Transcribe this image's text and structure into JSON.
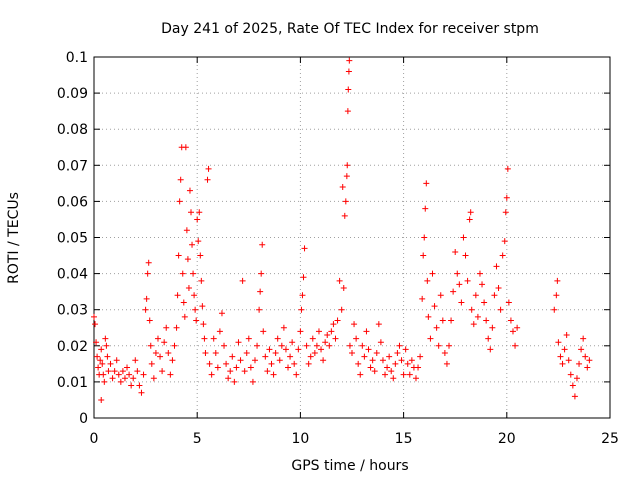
{
  "chart_data": {
    "type": "scatter",
    "title": "Day 241 of 2025, Rate Of TEC Index for receiver stpm",
    "xlabel": "GPS time / hours",
    "ylabel": "ROTI / TECUs",
    "xlim": [
      0,
      25
    ],
    "ylim": [
      0,
      0.1
    ],
    "x_ticks": [
      0,
      5,
      10,
      15,
      20,
      25
    ],
    "y_ticks": [
      0,
      0.01,
      0.02,
      0.03,
      0.04,
      0.05,
      0.06,
      0.07,
      0.08,
      0.09,
      0.1
    ],
    "x_tick_labels": [
      "0",
      "5",
      "10",
      "15",
      "20",
      "25"
    ],
    "y_tick_labels": [
      "0",
      "0.01",
      "0.02",
      "0.03",
      "0.04",
      "0.05",
      "0.06",
      "0.07",
      "0.08",
      "0.09",
      "0.1"
    ],
    "grid": true,
    "marker": "+",
    "color": "#ff0000",
    "series": [
      {
        "points": [
          [
            0.0,
            0.028
          ],
          [
            0.05,
            0.026
          ],
          [
            0.1,
            0.021
          ],
          [
            0.15,
            0.017
          ],
          [
            0.2,
            0.014
          ],
          [
            0.25,
            0.012
          ],
          [
            0.3,
            0.016
          ],
          [
            0.35,
            0.019
          ],
          [
            0.4,
            0.015
          ],
          [
            0.45,
            0.012
          ],
          [
            0.5,
            0.01
          ],
          [
            0.35,
            0.005
          ],
          [
            0.55,
            0.022
          ],
          [
            0.6,
            0.02
          ],
          [
            0.65,
            0.017
          ],
          [
            0.7,
            0.013
          ],
          [
            0.8,
            0.015
          ],
          [
            0.9,
            0.011
          ],
          [
            1.0,
            0.013
          ],
          [
            1.1,
            0.016
          ],
          [
            1.2,
            0.012
          ],
          [
            1.3,
            0.01
          ],
          [
            1.4,
            0.013
          ],
          [
            1.5,
            0.011
          ],
          [
            1.6,
            0.014
          ],
          [
            1.7,
            0.012
          ],
          [
            1.8,
            0.009
          ],
          [
            1.9,
            0.011
          ],
          [
            2.0,
            0.016
          ],
          [
            2.1,
            0.013
          ],
          [
            2.2,
            0.009
          ],
          [
            2.3,
            0.007
          ],
          [
            2.4,
            0.012
          ],
          [
            2.5,
            0.03
          ],
          [
            2.55,
            0.033
          ],
          [
            2.6,
            0.04
          ],
          [
            2.65,
            0.043
          ],
          [
            2.7,
            0.027
          ],
          [
            2.75,
            0.02
          ],
          [
            2.8,
            0.015
          ],
          [
            2.9,
            0.011
          ],
          [
            3.0,
            0.018
          ],
          [
            3.1,
            0.022
          ],
          [
            3.2,
            0.017
          ],
          [
            3.3,
            0.013
          ],
          [
            3.4,
            0.021
          ],
          [
            3.5,
            0.025
          ],
          [
            3.6,
            0.018
          ],
          [
            3.7,
            0.012
          ],
          [
            3.8,
            0.016
          ],
          [
            3.9,
            0.02
          ],
          [
            4.0,
            0.025
          ],
          [
            4.05,
            0.034
          ],
          [
            4.1,
            0.045
          ],
          [
            4.15,
            0.06
          ],
          [
            4.2,
            0.066
          ],
          [
            4.25,
            0.075
          ],
          [
            4.3,
            0.04
          ],
          [
            4.35,
            0.032
          ],
          [
            4.4,
            0.028
          ],
          [
            4.45,
            0.075
          ],
          [
            4.5,
            0.052
          ],
          [
            4.55,
            0.044
          ],
          [
            4.6,
            0.036
          ],
          [
            4.65,
            0.063
          ],
          [
            4.7,
            0.057
          ],
          [
            4.75,
            0.048
          ],
          [
            4.8,
            0.04
          ],
          [
            4.85,
            0.034
          ],
          [
            4.9,
            0.03
          ],
          [
            4.95,
            0.027
          ],
          [
            5.0,
            0.055
          ],
          [
            5.05,
            0.049
          ],
          [
            5.1,
            0.057
          ],
          [
            5.15,
            0.045
          ],
          [
            5.2,
            0.038
          ],
          [
            5.25,
            0.031
          ],
          [
            5.3,
            0.026
          ],
          [
            5.35,
            0.022
          ],
          [
            5.4,
            0.018
          ],
          [
            5.5,
            0.066
          ],
          [
            5.55,
            0.069
          ],
          [
            5.6,
            0.015
          ],
          [
            5.7,
            0.012
          ],
          [
            5.8,
            0.022
          ],
          [
            5.9,
            0.018
          ],
          [
            6.0,
            0.014
          ],
          [
            6.1,
            0.024
          ],
          [
            6.2,
            0.029
          ],
          [
            6.3,
            0.02
          ],
          [
            6.4,
            0.015
          ],
          [
            6.5,
            0.011
          ],
          [
            6.6,
            0.013
          ],
          [
            6.7,
            0.017
          ],
          [
            6.8,
            0.01
          ],
          [
            6.9,
            0.014
          ],
          [
            7.0,
            0.021
          ],
          [
            7.1,
            0.016
          ],
          [
            7.2,
            0.038
          ],
          [
            7.3,
            0.013
          ],
          [
            7.4,
            0.018
          ],
          [
            7.5,
            0.022
          ],
          [
            7.6,
            0.014
          ],
          [
            7.7,
            0.01
          ],
          [
            7.8,
            0.016
          ],
          [
            7.9,
            0.02
          ],
          [
            8.0,
            0.03
          ],
          [
            8.05,
            0.035
          ],
          [
            8.1,
            0.04
          ],
          [
            8.15,
            0.048
          ],
          [
            8.2,
            0.024
          ],
          [
            8.3,
            0.017
          ],
          [
            8.4,
            0.013
          ],
          [
            8.5,
            0.019
          ],
          [
            8.6,
            0.015
          ],
          [
            8.7,
            0.012
          ],
          [
            8.8,
            0.018
          ],
          [
            8.9,
            0.022
          ],
          [
            9.0,
            0.016
          ],
          [
            9.1,
            0.02
          ],
          [
            9.2,
            0.025
          ],
          [
            9.3,
            0.019
          ],
          [
            9.4,
            0.014
          ],
          [
            9.5,
            0.017
          ],
          [
            9.6,
            0.021
          ],
          [
            9.7,
            0.015
          ],
          [
            9.8,
            0.012
          ],
          [
            9.9,
            0.019
          ],
          [
            10.0,
            0.024
          ],
          [
            10.05,
            0.03
          ],
          [
            10.1,
            0.034
          ],
          [
            10.15,
            0.039
          ],
          [
            10.2,
            0.047
          ],
          [
            10.3,
            0.02
          ],
          [
            10.4,
            0.015
          ],
          [
            10.5,
            0.017
          ],
          [
            10.6,
            0.022
          ],
          [
            10.7,
            0.018
          ],
          [
            10.8,
            0.02
          ],
          [
            10.9,
            0.024
          ],
          [
            11.0,
            0.019
          ],
          [
            11.1,
            0.016
          ],
          [
            11.2,
            0.021
          ],
          [
            11.3,
            0.023
          ],
          [
            11.4,
            0.02
          ],
          [
            11.5,
            0.024
          ],
          [
            11.6,
            0.026
          ],
          [
            11.7,
            0.022
          ],
          [
            11.8,
            0.027
          ],
          [
            11.9,
            0.038
          ],
          [
            12.0,
            0.03
          ],
          [
            12.05,
            0.064
          ],
          [
            12.1,
            0.036
          ],
          [
            12.15,
            0.056
          ],
          [
            12.2,
            0.06
          ],
          [
            12.25,
            0.067
          ],
          [
            12.27,
            0.07
          ],
          [
            12.3,
            0.085
          ],
          [
            12.32,
            0.091
          ],
          [
            12.35,
            0.096
          ],
          [
            12.37,
            0.099
          ],
          [
            12.4,
            0.02
          ],
          [
            12.5,
            0.018
          ],
          [
            12.6,
            0.026
          ],
          [
            12.7,
            0.022
          ],
          [
            12.8,
            0.015
          ],
          [
            12.9,
            0.012
          ],
          [
            13.0,
            0.02
          ],
          [
            13.1,
            0.017
          ],
          [
            13.2,
            0.024
          ],
          [
            13.3,
            0.019
          ],
          [
            13.4,
            0.014
          ],
          [
            13.5,
            0.016
          ],
          [
            13.6,
            0.013
          ],
          [
            13.7,
            0.018
          ],
          [
            13.8,
            0.026
          ],
          [
            13.9,
            0.021
          ],
          [
            14.0,
            0.016
          ],
          [
            14.1,
            0.012
          ],
          [
            14.2,
            0.014
          ],
          [
            14.3,
            0.017
          ],
          [
            14.4,
            0.013
          ],
          [
            14.5,
            0.011
          ],
          [
            14.6,
            0.015
          ],
          [
            14.7,
            0.018
          ],
          [
            14.8,
            0.02
          ],
          [
            14.9,
            0.016
          ],
          [
            15.0,
            0.012
          ],
          [
            15.1,
            0.019
          ],
          [
            15.2,
            0.015
          ],
          [
            15.3,
            0.012
          ],
          [
            15.4,
            0.016
          ],
          [
            15.5,
            0.014
          ],
          [
            15.6,
            0.011
          ],
          [
            15.7,
            0.014
          ],
          [
            15.8,
            0.017
          ],
          [
            15.9,
            0.033
          ],
          [
            15.95,
            0.045
          ],
          [
            16.0,
            0.05
          ],
          [
            16.05,
            0.058
          ],
          [
            16.1,
            0.065
          ],
          [
            16.15,
            0.038
          ],
          [
            16.2,
            0.028
          ],
          [
            16.3,
            0.022
          ],
          [
            16.4,
            0.04
          ],
          [
            16.5,
            0.031
          ],
          [
            16.6,
            0.025
          ],
          [
            16.7,
            0.02
          ],
          [
            16.8,
            0.034
          ],
          [
            16.9,
            0.027
          ],
          [
            17.0,
            0.018
          ],
          [
            17.1,
            0.015
          ],
          [
            17.2,
            0.02
          ],
          [
            17.3,
            0.027
          ],
          [
            17.4,
            0.035
          ],
          [
            17.5,
            0.046
          ],
          [
            17.6,
            0.04
          ],
          [
            17.7,
            0.037
          ],
          [
            17.8,
            0.032
          ],
          [
            17.9,
            0.05
          ],
          [
            18.0,
            0.045
          ],
          [
            18.1,
            0.038
          ],
          [
            18.2,
            0.055
          ],
          [
            18.25,
            0.057
          ],
          [
            18.3,
            0.03
          ],
          [
            18.4,
            0.026
          ],
          [
            18.5,
            0.034
          ],
          [
            18.6,
            0.028
          ],
          [
            18.7,
            0.04
          ],
          [
            18.8,
            0.037
          ],
          [
            18.9,
            0.032
          ],
          [
            19.0,
            0.027
          ],
          [
            19.1,
            0.022
          ],
          [
            19.2,
            0.019
          ],
          [
            19.3,
            0.025
          ],
          [
            19.4,
            0.034
          ],
          [
            19.5,
            0.042
          ],
          [
            19.6,
            0.036
          ],
          [
            19.7,
            0.03
          ],
          [
            19.8,
            0.045
          ],
          [
            19.9,
            0.049
          ],
          [
            19.95,
            0.057
          ],
          [
            20.0,
            0.061
          ],
          [
            20.05,
            0.069
          ],
          [
            20.1,
            0.032
          ],
          [
            20.2,
            0.027
          ],
          [
            20.3,
            0.024
          ],
          [
            20.4,
            0.02
          ],
          [
            20.5,
            0.025
          ],
          [
            22.3,
            0.03
          ],
          [
            22.4,
            0.034
          ],
          [
            22.45,
            0.038
          ],
          [
            22.5,
            0.021
          ],
          [
            22.6,
            0.017
          ],
          [
            22.7,
            0.015
          ],
          [
            22.8,
            0.019
          ],
          [
            22.9,
            0.023
          ],
          [
            23.0,
            0.016
          ],
          [
            23.1,
            0.012
          ],
          [
            23.2,
            0.009
          ],
          [
            23.3,
            0.006
          ],
          [
            23.4,
            0.011
          ],
          [
            23.5,
            0.015
          ],
          [
            23.6,
            0.019
          ],
          [
            23.7,
            0.022
          ],
          [
            23.8,
            0.017
          ],
          [
            23.9,
            0.014
          ],
          [
            24.0,
            0.016
          ]
        ]
      }
    ]
  }
}
